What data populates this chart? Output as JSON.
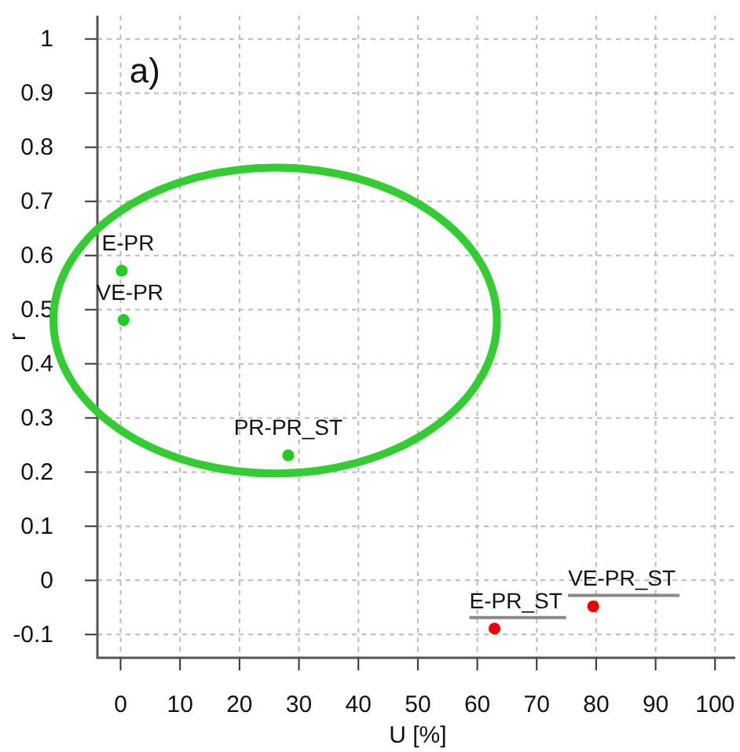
{
  "chart_data": {
    "type": "scatter",
    "xlabel": "U [%]",
    "ylabel": "r",
    "xlim": [
      -3.9,
      103.4
    ],
    "ylim": [
      -0.143,
      1.043
    ],
    "xticks": [
      0,
      10,
      20,
      30,
      40,
      50,
      60,
      70,
      80,
      90,
      100
    ],
    "yticks": [
      -0.1,
      0,
      0.1,
      0.2,
      0.3,
      0.4,
      0.5,
      0.6,
      0.7,
      0.8,
      0.9,
      1
    ],
    "grid": true,
    "marker": "circle",
    "series": [
      {
        "color": "#22cc22",
        "x": [
          0.2,
          0.5,
          28.2
        ],
        "values": [
          0.572,
          0.481,
          0.231
        ]
      },
      {
        "color": "#ee0000",
        "x": [
          62.9,
          79.5
        ],
        "values": [
          -0.089,
          -0.048
        ]
      }
    ],
    "annotations": [
      "a)",
      {
        "text": "E-PR",
        "x": 0.2,
        "y": 0.572
      },
      {
        "text": "VE-PR",
        "x": 0.5,
        "y": 0.481
      },
      {
        "text": "PR-PR_ST",
        "x": 28.2,
        "y": 0.231
      },
      {
        "text": "E-PR_ST",
        "x": 62.9,
        "y": -0.089
      },
      {
        "text": "VE-PR_ST",
        "x": 79.5,
        "y": -0.048
      }
    ]
  }
}
